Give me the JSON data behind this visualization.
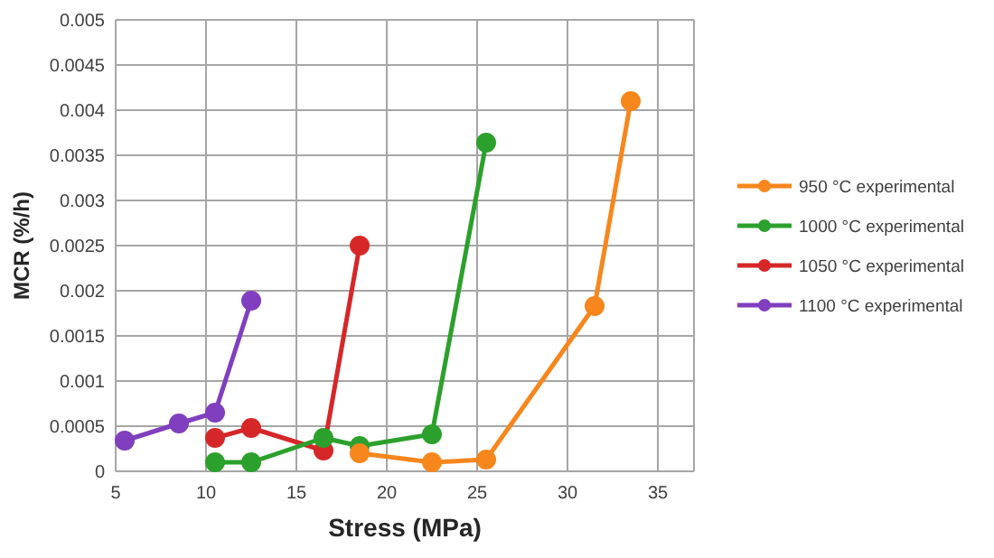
{
  "chart_data": {
    "type": "line",
    "xlabel": "Stress (MPa)",
    "ylabel": "MCR (%/h)",
    "xlim": [
      5,
      37
    ],
    "xticks": [
      5,
      10,
      15,
      20,
      25,
      30,
      35
    ],
    "ylim": [
      0,
      0.005
    ],
    "yticks": [
      0,
      0.0005,
      0.001,
      0.0015,
      0.002,
      0.0025,
      0.003,
      0.0035,
      0.004,
      0.0045,
      0.005
    ],
    "grid": true,
    "legend": "right",
    "marker": "circle",
    "series": [
      {
        "name": "950 °C experimental",
        "color": "#f7861c",
        "x": [
          18.5,
          22.5,
          25.5,
          31.5,
          33.5
        ],
        "values": [
          0.0002,
          0.0001,
          0.00013,
          0.00183,
          0.0041
        ]
      },
      {
        "name": "1000 °C experimental",
        "color": "#2ca02c",
        "x": [
          10.5,
          12.5,
          16.5,
          18.5,
          22.5,
          25.5
        ],
        "values": [
          0.0001,
          0.0001,
          0.00037,
          0.00028,
          0.00041,
          0.00364
        ]
      },
      {
        "name": "1050 °C experimental",
        "color": "#d62728",
        "x": [
          10.5,
          12.5,
          16.5,
          18.5
        ],
        "values": [
          0.00037,
          0.00048,
          0.00023,
          0.0025
        ]
      },
      {
        "name": "1100 °C experimental",
        "color": "#7f3fbf",
        "x": [
          5.5,
          8.5,
          10.5,
          12.5
        ],
        "values": [
          0.00034,
          0.00053,
          0.00065,
          0.00189
        ]
      }
    ]
  }
}
